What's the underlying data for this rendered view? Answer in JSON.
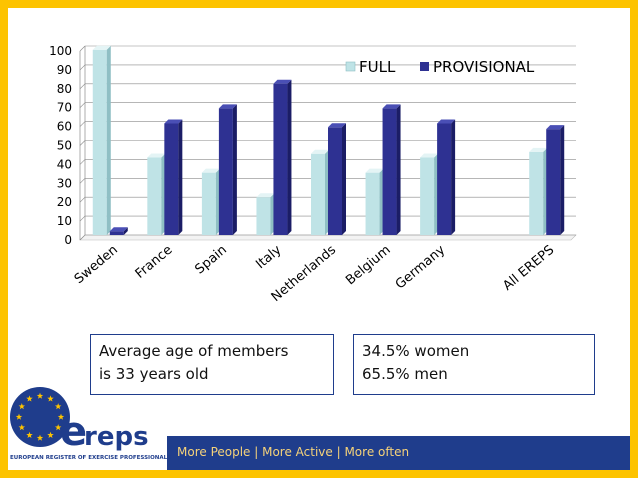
{
  "chart_data": {
    "type": "bar",
    "categories": [
      "Sweden",
      "France",
      "Spain",
      "Italy",
      "Netherlands",
      "Belgium",
      "Germany",
      "",
      "All EREPS"
    ],
    "series": [
      {
        "name": "FULL",
        "values": [
          98,
          41,
          33,
          20,
          43,
          33,
          41,
          null,
          44
        ],
        "color": "#bfe3e6"
      },
      {
        "name": "PROVISIONAL",
        "values": [
          2,
          59,
          67,
          80,
          57,
          67,
          59,
          null,
          56
        ],
        "color": "#2e3192"
      }
    ],
    "y_ticks": [
      "0",
      "10",
      "20",
      "30",
      "40",
      "50",
      "60",
      "70",
      "80",
      "90",
      "100"
    ],
    "ylim": [
      0,
      100
    ],
    "grid": true,
    "legend_position": "top-right"
  },
  "info_boxes": {
    "age": {
      "line1": "Average age of members",
      "line2": "is 33 years old"
    },
    "gender": {
      "line1": "34.5% women",
      "line2": "65.5% men"
    }
  },
  "footer": {
    "tagline": "More People | More Active | More often"
  },
  "logo": {
    "text": "ereps",
    "subtitle": "EUROPEAN REGISTER OF EXERCISE PROFESSIONALS"
  },
  "colors": {
    "border": "#fdc300",
    "navy": "#1f3d8c",
    "full": "#bfe3e6",
    "provisional": "#2e3192"
  }
}
